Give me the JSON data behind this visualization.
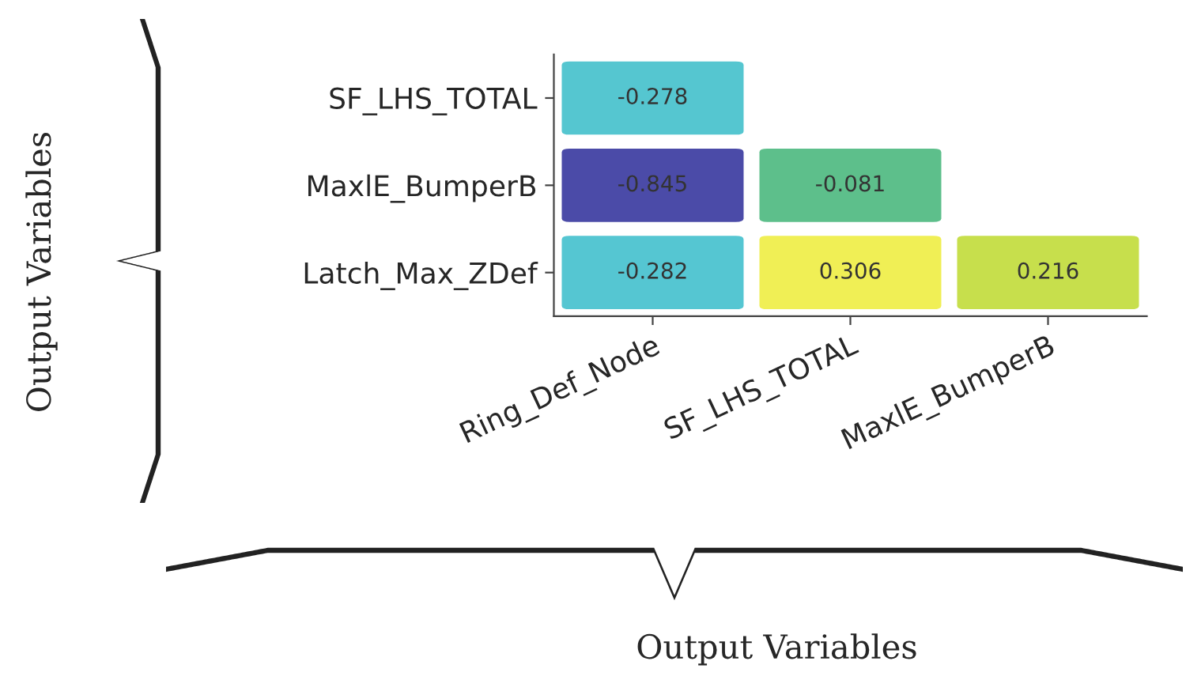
{
  "chart_data": {
    "type": "heatmap",
    "annotations": [
      "Output Variables",
      "Output Variables"
    ],
    "categories": [
      "Ring_Def_Node",
      "SF_LHS_TOTAL",
      "MaxlE_BumperB"
    ],
    "y_categories": [
      "SF_LHS_TOTAL",
      "MaxlE_BumperB",
      "Latch_Max_ZDef"
    ],
    "cells": [
      [
        -0.278,
        null,
        null
      ],
      [
        -0.845,
        -0.081,
        null
      ],
      [
        -0.282,
        0.306,
        0.216
      ]
    ],
    "data_labels": true
  }
}
